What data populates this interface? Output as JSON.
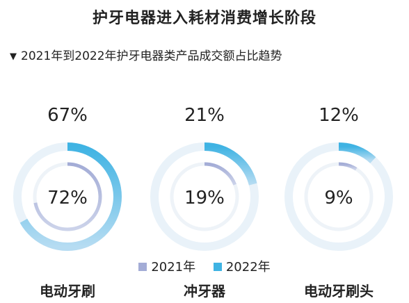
{
  "title": "护牙电器进入耗材消费增长阶段",
  "subtitle": "2021年到2022年护牙电器类产品成交额占比趋势",
  "subtitle_marker": "▼",
  "chart_data": {
    "type": "donut",
    "title": "护牙电器进入耗材消费增长阶段",
    "subtitle": "2021年到2022年护牙电器类产品成交额占比趋势",
    "categories": [
      "电动牙刷",
      "冲牙器",
      "电动牙刷头"
    ],
    "series": [
      {
        "name": "2021年",
        "values": [
          72,
          19,
          9
        ],
        "labels": [
          "72%",
          "19%",
          "9%"
        ],
        "color": "#a3acd6"
      },
      {
        "name": "2022年",
        "values": [
          67,
          21,
          12
        ],
        "labels": [
          "67%",
          "21%",
          "12%"
        ],
        "color": "#3fb3e3"
      }
    ],
    "legend": [
      "2021年",
      "2022年"
    ],
    "legend_position": "bottom"
  },
  "colors": {
    "track": "#e9f2f9",
    "inner_track": "#eef3f8",
    "outer_gradient_light": "#b6dcf2",
    "inner_gradient_light": "#ccd3ea"
  }
}
